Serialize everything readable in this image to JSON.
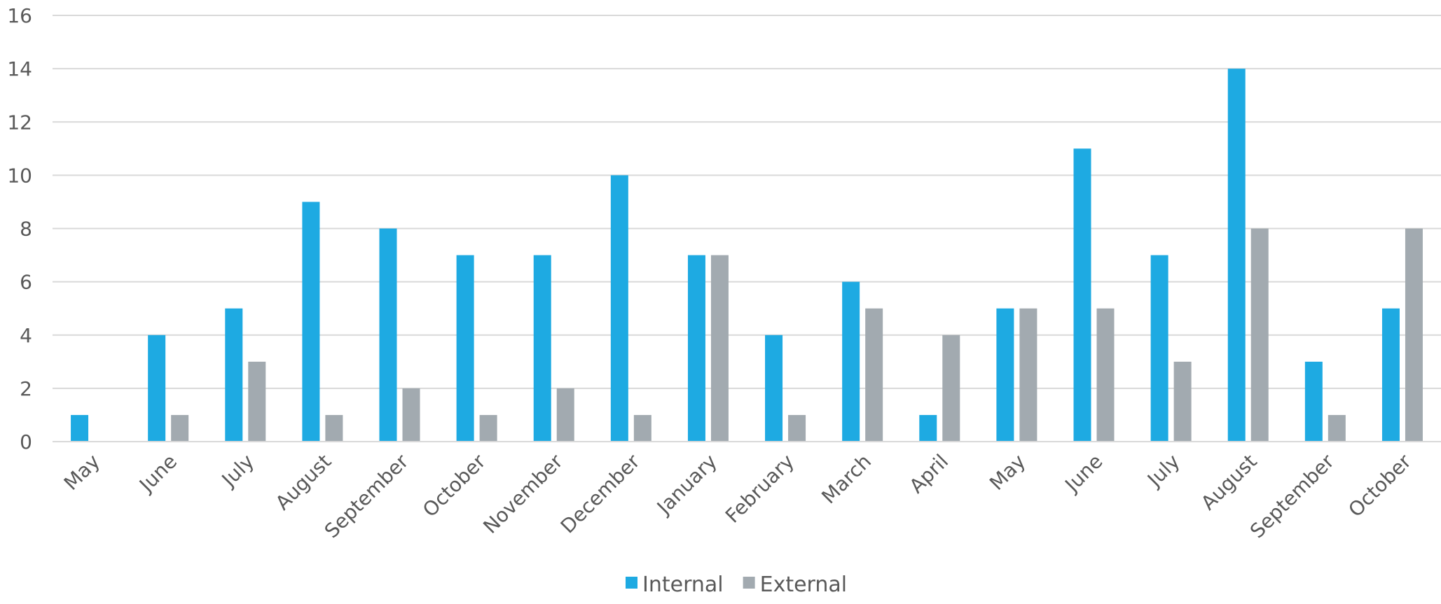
{
  "chart_data": {
    "type": "bar",
    "title": "",
    "xlabel": "",
    "ylabel": "",
    "ylim": [
      0,
      16
    ],
    "yticks": [
      0,
      2,
      4,
      6,
      8,
      10,
      12,
      14,
      16
    ],
    "grid": true,
    "legend_position": "bottom",
    "categories": [
      "May",
      "June",
      "July",
      "August",
      "September",
      "October",
      "November",
      "December",
      "January",
      "February",
      "March",
      "April",
      "May",
      "June",
      "July",
      "August",
      "September",
      "October"
    ],
    "series": [
      {
        "name": "Internal",
        "color": "#1EAAE2",
        "values": [
          1,
          4,
          5,
          9,
          8,
          7,
          7,
          10,
          7,
          4,
          6,
          1,
          5,
          11,
          7,
          14,
          3,
          5
        ]
      },
      {
        "name": "External",
        "color": "#A2AAB0",
        "values": [
          0,
          1,
          3,
          1,
          2,
          1,
          2,
          1,
          7,
          1,
          5,
          4,
          5,
          5,
          3,
          8,
          1,
          8
        ]
      }
    ]
  }
}
